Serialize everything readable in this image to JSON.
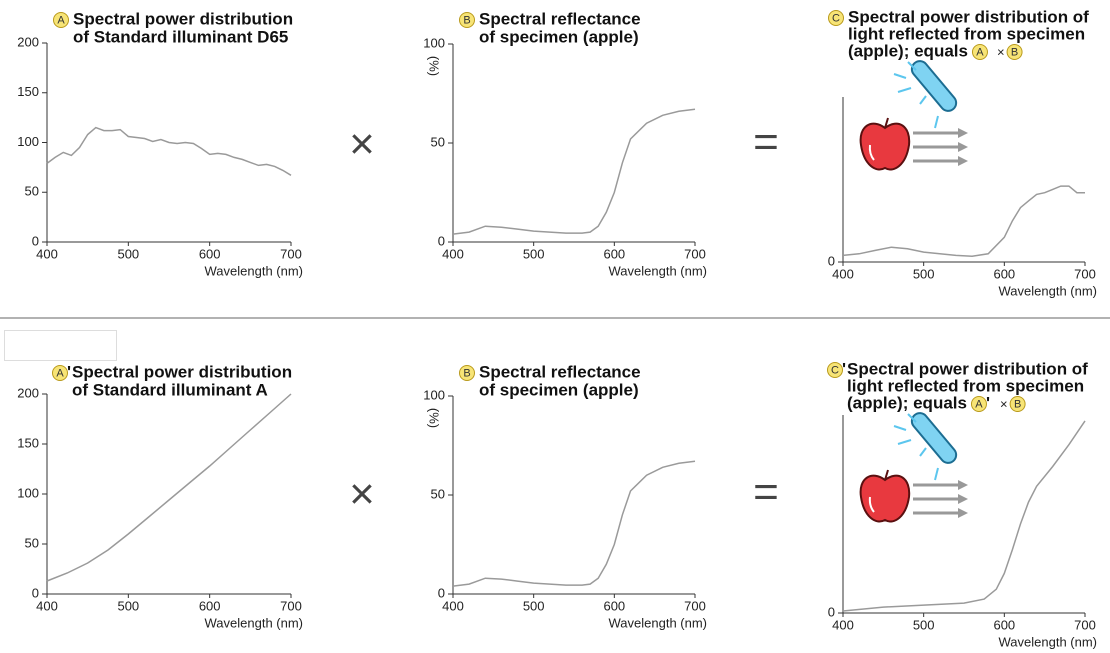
{
  "operators": [
    "×",
    "="
  ],
  "chart_data": [
    {
      "type": "line",
      "badge": "A",
      "title_lines": [
        "Spectral power distribution",
        "of Standard illuminant D65"
      ],
      "xlabel": "Wavelength (nm)",
      "color": "#9a9a9a",
      "x": [
        400,
        410,
        420,
        430,
        440,
        450,
        460,
        470,
        480,
        490,
        500,
        510,
        520,
        530,
        540,
        550,
        560,
        570,
        580,
        590,
        600,
        610,
        620,
        630,
        640,
        650,
        660,
        670,
        680,
        690,
        700
      ],
      "values": [
        79,
        85,
        90,
        87,
        95,
        108,
        115,
        112,
        112,
        113,
        106,
        105,
        104,
        101,
        103,
        100,
        99,
        100,
        99,
        94,
        88,
        89,
        88,
        85,
        83,
        80,
        77,
        78,
        76,
        72,
        67
      ],
      "xlim": [
        400,
        700
      ],
      "xticks": [
        400,
        500,
        600,
        700
      ],
      "ylim": [
        0,
        200
      ],
      "yticks": [
        0,
        50,
        100,
        150,
        200
      ]
    },
    {
      "type": "line",
      "badge": "B",
      "title_lines": [
        "Spectral reflectance",
        "of specimen (apple)"
      ],
      "xlabel": "Wavelength (nm)",
      "ylabel": "(%)",
      "color": "#9a9a9a",
      "x": [
        400,
        420,
        440,
        460,
        480,
        500,
        520,
        540,
        560,
        570,
        580,
        590,
        600,
        610,
        620,
        640,
        660,
        680,
        700
      ],
      "values": [
        4,
        5,
        8,
        7.5,
        6.5,
        5.5,
        5,
        4.5,
        4.5,
        5,
        8,
        15,
        25,
        40,
        52,
        60,
        64,
        66,
        67
      ],
      "xlim": [
        400,
        700
      ],
      "xticks": [
        400,
        500,
        600,
        700
      ],
      "ylim": [
        0,
        100
      ],
      "yticks": [
        0,
        50,
        100
      ]
    },
    {
      "type": "line",
      "badge": "C",
      "title_lines": [
        "Spectral power distribution of",
        "light reflected from specimen",
        "(apple); equals"
      ],
      "formula": [
        {
          "badge": "A"
        },
        {
          "text": "×"
        },
        {
          "badge": "B"
        }
      ],
      "xlabel": "Wavelength (nm)",
      "color": "#9a9a9a",
      "x": [
        400,
        420,
        440,
        460,
        480,
        500,
        520,
        540,
        560,
        580,
        600,
        610,
        620,
        630,
        640,
        650,
        660,
        670,
        680,
        690,
        700
      ],
      "values": [
        4,
        5,
        7,
        9,
        8,
        6,
        5,
        4,
        3.5,
        5,
        15,
        25,
        33,
        37,
        41,
        42,
        44,
        46,
        46,
        42,
        42
      ],
      "xlim": [
        400,
        700
      ],
      "xticks": [
        400,
        500,
        600,
        700
      ],
      "ylim": [
        0,
        100
      ],
      "yticks": [
        0
      ]
    },
    {
      "type": "line",
      "badge": "A",
      "badge_suffix": "'",
      "title_lines": [
        "Spectral power distribution",
        "of Standard illuminant A"
      ],
      "xlabel": "Wavelength (nm)",
      "color": "#9a9a9a",
      "x": [
        400,
        425,
        450,
        475,
        500,
        525,
        550,
        575,
        600,
        625,
        650,
        675,
        700
      ],
      "values": [
        13,
        21,
        31,
        44,
        60,
        77,
        94,
        111,
        128,
        146,
        164,
        182,
        200
      ],
      "xlim": [
        400,
        700
      ],
      "xticks": [
        400,
        500,
        600,
        700
      ],
      "ylim": [
        0,
        200
      ],
      "yticks": [
        0,
        50,
        100,
        150,
        200
      ]
    },
    {
      "type": "line",
      "badge": "B",
      "title_lines": [
        "Spectral reflectance",
        "of specimen (apple)"
      ],
      "xlabel": "Wavelength (nm)",
      "ylabel": "(%)",
      "color": "#9a9a9a",
      "x": [
        400,
        420,
        440,
        460,
        480,
        500,
        520,
        540,
        560,
        570,
        580,
        590,
        600,
        610,
        620,
        640,
        660,
        680,
        700
      ],
      "values": [
        4,
        5,
        8,
        7.5,
        6.5,
        5.5,
        5,
        4.5,
        4.5,
        5,
        8,
        15,
        25,
        40,
        52,
        60,
        64,
        66,
        67
      ],
      "xlim": [
        400,
        700
      ],
      "xticks": [
        400,
        500,
        600,
        700
      ],
      "ylim": [
        0,
        100
      ],
      "yticks": [
        0,
        50,
        100
      ]
    },
    {
      "type": "line",
      "badge": "C",
      "badge_suffix": "'",
      "title_lines": [
        "Spectral power distribution of",
        "light reflected from specimen",
        "(apple); equals"
      ],
      "formula": [
        {
          "badge": "A",
          "suffix": "'"
        },
        {
          "text": "×"
        },
        {
          "badge": "B"
        }
      ],
      "xlabel": "Wavelength (nm)",
      "color": "#9a9a9a",
      "x": [
        400,
        450,
        500,
        550,
        575,
        590,
        600,
        610,
        620,
        630,
        640,
        660,
        680,
        700
      ],
      "values": [
        1,
        3,
        4,
        5,
        7,
        12,
        20,
        32,
        45,
        56,
        64,
        74,
        85,
        97
      ],
      "xlim": [
        400,
        700
      ],
      "xticks": [
        400,
        500,
        600,
        700
      ],
      "ylim": [
        0,
        100
      ],
      "yticks": [
        0
      ]
    }
  ]
}
